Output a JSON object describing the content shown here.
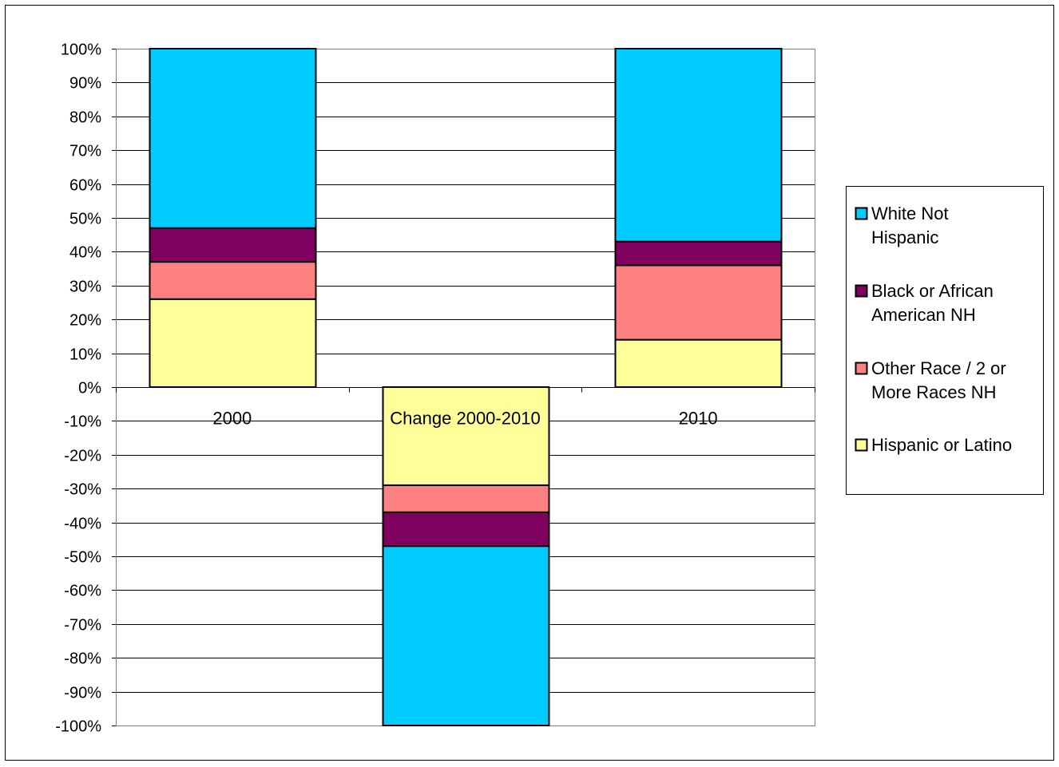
{
  "chart_data": {
    "type": "bar",
    "stacked": true,
    "percent_stacked": true,
    "categories": [
      "2000",
      "Change 2000-2010",
      "2010"
    ],
    "series": [
      {
        "name": "Hispanic or Latino",
        "color": "#FFFF99",
        "values": [
          26,
          -29,
          14
        ]
      },
      {
        "name": "Other Race / 2 or More Races NH",
        "color": "#FF8080",
        "values": [
          11,
          -8,
          22
        ]
      },
      {
        "name": "Black or African American NH",
        "color": "#800060",
        "values": [
          10,
          -10,
          7
        ]
      },
      {
        "name": "White Not Hispanic",
        "color": "#00CCFF",
        "values": [
          53,
          -53,
          57
        ]
      }
    ],
    "legend_labels": [
      [
        "White Not",
        "Hispanic"
      ],
      [
        "Black or African",
        "American NH"
      ],
      [
        "Other Race / 2 or",
        "More Races NH"
      ],
      [
        "Hispanic or Latino"
      ]
    ],
    "legend_order": [
      3,
      2,
      1,
      0
    ],
    "ylim": [
      -100,
      100
    ],
    "yticks": [
      100,
      90,
      80,
      70,
      60,
      50,
      40,
      30,
      20,
      10,
      0,
      -10,
      -20,
      -30,
      -40,
      -50,
      -60,
      -70,
      -80,
      -90,
      -100
    ],
    "ytick_labels": [
      "100%",
      "90%",
      "80%",
      "70%",
      "60%",
      "50%",
      "40%",
      "30%",
      "20%",
      "10%",
      "0%",
      "-10%",
      "-20%",
      "-30%",
      "-40%",
      "-50%",
      "-60%",
      "-70%",
      "-80%",
      "-90%",
      "-100%"
    ],
    "grid": true,
    "legend_position": "right",
    "title": "",
    "xlabel": "",
    "ylabel": ""
  }
}
